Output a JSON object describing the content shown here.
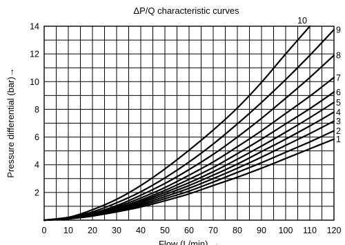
{
  "chart_data": {
    "type": "line",
    "title": "ΔP/Q characteristic curves",
    "xlabel": "Flow  (L/min)  →",
    "ylabel": "Pressure differential (bar)→",
    "xlim": [
      0,
      120
    ],
    "ylim": [
      0,
      14
    ],
    "grid": true,
    "x_ticks": [
      {
        "value": 0,
        "label": "0"
      },
      {
        "value": 10,
        "label": "10"
      },
      {
        "value": 20,
        "label": "20"
      },
      {
        "value": 30,
        "label": "30"
      },
      {
        "value": 40,
        "label": "40"
      },
      {
        "value": 50,
        "label": "50"
      },
      {
        "value": 60,
        "label": "60"
      },
      {
        "value": 70,
        "label": "70"
      },
      {
        "value": 80,
        "label": "80"
      },
      {
        "value": 90,
        "label": "90"
      },
      {
        "value": 100,
        "label": "100"
      },
      {
        "value": 110,
        "label": "110"
      },
      {
        "value": 120,
        "label": "120"
      }
    ],
    "x_grid_step": 5,
    "y_ticks": [
      {
        "value": 2,
        "label": "2"
      },
      {
        "value": 4,
        "label": "4"
      },
      {
        "value": 6,
        "label": "6"
      },
      {
        "value": 8,
        "label": "8"
      },
      {
        "value": 10,
        "label": "10"
      },
      {
        "value": 12,
        "label": "12"
      },
      {
        "value": 14,
        "label": "14"
      }
    ],
    "y_grid_step": 1,
    "series": [
      {
        "name": "1",
        "x": [
          0,
          10,
          20,
          30,
          40,
          50,
          60,
          70,
          80,
          90,
          100,
          110,
          120
        ],
        "y": [
          0,
          0.1,
          0.3,
          0.6,
          0.95,
          1.4,
          1.9,
          2.5,
          3.1,
          3.75,
          4.45,
          5.15,
          5.85
        ]
      },
      {
        "name": "2",
        "x": [
          0,
          10,
          20,
          30,
          40,
          50,
          60,
          70,
          80,
          90,
          100,
          110,
          120
        ],
        "y": [
          0,
          0.1,
          0.3,
          0.65,
          1.05,
          1.55,
          2.1,
          2.75,
          3.45,
          4.15,
          4.9,
          5.65,
          6.45
        ]
      },
      {
        "name": "3",
        "x": [
          0,
          10,
          20,
          30,
          40,
          50,
          60,
          70,
          80,
          90,
          100,
          110,
          120
        ],
        "y": [
          0,
          0.1,
          0.35,
          0.7,
          1.15,
          1.7,
          2.3,
          3.0,
          3.75,
          4.55,
          5.4,
          6.25,
          7.15
        ]
      },
      {
        "name": "4",
        "x": [
          0,
          10,
          20,
          30,
          40,
          50,
          60,
          70,
          80,
          90,
          100,
          110,
          120
        ],
        "y": [
          0,
          0.1,
          0.35,
          0.75,
          1.25,
          1.85,
          2.5,
          3.25,
          4.05,
          4.95,
          5.85,
          6.8,
          7.8
        ]
      },
      {
        "name": "5",
        "x": [
          0,
          10,
          20,
          30,
          40,
          50,
          60,
          70,
          80,
          90,
          100,
          110,
          120
        ],
        "y": [
          0,
          0.1,
          0.4,
          0.8,
          1.35,
          2.0,
          2.7,
          3.5,
          4.4,
          5.35,
          6.35,
          7.4,
          8.5
        ]
      },
      {
        "name": "6",
        "x": [
          0,
          10,
          20,
          30,
          40,
          50,
          60,
          70,
          80,
          90,
          100,
          110,
          120
        ],
        "y": [
          0,
          0.1,
          0.4,
          0.85,
          1.45,
          2.15,
          2.95,
          3.8,
          4.8,
          5.85,
          6.95,
          8.05,
          9.25
        ]
      },
      {
        "name": "7",
        "x": [
          0,
          10,
          20,
          30,
          40,
          50,
          60,
          70,
          80,
          90,
          100,
          110,
          120
        ],
        "y": [
          0,
          0.15,
          0.45,
          0.95,
          1.6,
          2.35,
          3.25,
          4.2,
          5.3,
          6.45,
          7.7,
          8.95,
          10.3
        ]
      },
      {
        "name": "8",
        "x": [
          0,
          10,
          20,
          30,
          40,
          50,
          60,
          70,
          80,
          90,
          100,
          110,
          120
        ],
        "y": [
          0,
          0.15,
          0.5,
          1.05,
          1.8,
          2.65,
          3.65,
          4.75,
          6.0,
          7.35,
          8.8,
          10.3,
          11.9
        ]
      },
      {
        "name": "9",
        "x": [
          0,
          10,
          20,
          30,
          40,
          50,
          60,
          70,
          80,
          90,
          100,
          110,
          120
        ],
        "y": [
          0,
          0.2,
          0.6,
          1.25,
          2.05,
          3.05,
          4.2,
          5.5,
          6.95,
          8.5,
          10.15,
          11.9,
          13.75
        ]
      },
      {
        "name": "10",
        "x": [
          0,
          10,
          20,
          30,
          40,
          50,
          60,
          70,
          80,
          90,
          100,
          110
        ],
        "y": [
          0,
          0.2,
          0.75,
          1.5,
          2.5,
          3.7,
          5.05,
          6.5,
          8.1,
          9.95,
          12.0,
          14.0
        ]
      }
    ]
  }
}
